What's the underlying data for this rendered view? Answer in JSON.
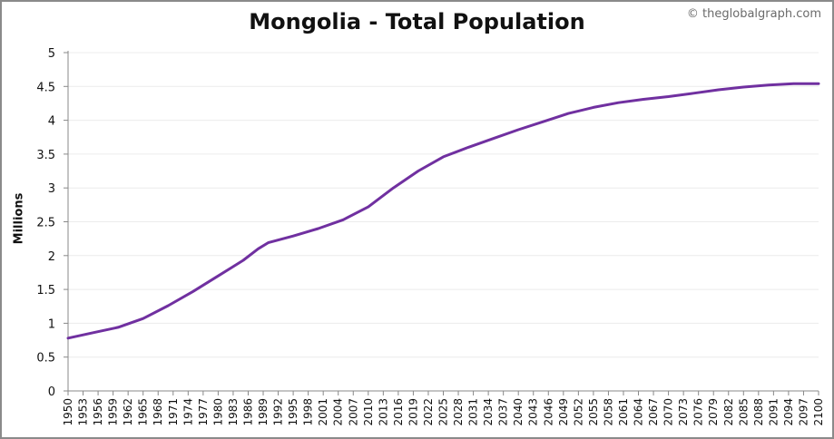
{
  "chart_data": {
    "type": "line",
    "title": "Mongolia - Total Population",
    "credit": "© theglobalgraph.com",
    "ylabel": "Millions",
    "xlabel": "",
    "ylim": [
      0,
      5
    ],
    "yticks": [
      "0",
      "0.5",
      "1",
      "1.5",
      "2",
      "2.5",
      "3",
      "3.5",
      "4",
      "4.5",
      "5"
    ],
    "xlim": [
      1950,
      2100
    ],
    "xtick_step": 3,
    "grid": true,
    "line_color": "#7030a0",
    "series": [
      {
        "x": [
          1950,
          1955,
          1960,
          1965,
          1970,
          1975,
          1980,
          1985,
          1988,
          1990,
          1995,
          2000,
          2005,
          2010,
          2015,
          2020,
          2025,
          2030,
          2035,
          2040,
          2045,
          2050,
          2055,
          2060,
          2065,
          2070,
          2075,
          2080,
          2085,
          2090,
          2095,
          2100
        ],
        "values": [
          0.78,
          0.86,
          0.94,
          1.07,
          1.26,
          1.47,
          1.7,
          1.93,
          2.1,
          2.19,
          2.29,
          2.4,
          2.53,
          2.72,
          3.0,
          3.25,
          3.46,
          3.6,
          3.73,
          3.86,
          3.98,
          4.1,
          4.19,
          4.26,
          4.31,
          4.35,
          4.4,
          4.45,
          4.49,
          4.52,
          4.54,
          4.54
        ]
      }
    ]
  }
}
